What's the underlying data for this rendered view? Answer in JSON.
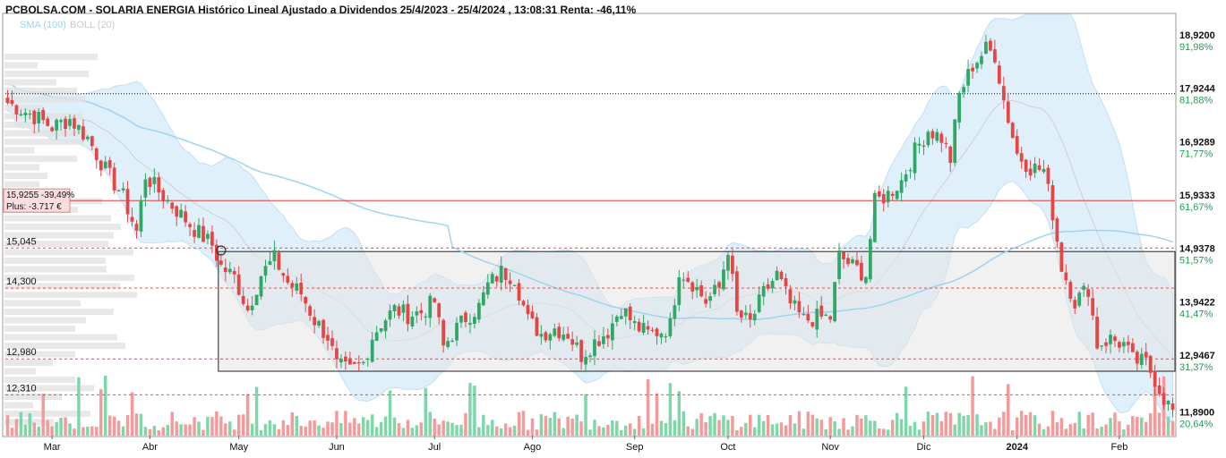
{
  "chart_data": {
    "type": "candlestick",
    "title": "PCBOLSA.COM - SOLARIA ENERGIA Histórico Lineal Ajustado a Dividendos 25/4/2023 - 25/4/2024 , 13:08:31 Renta: -46,11%",
    "legend": [
      {
        "name": "SMA (100)",
        "color": "#9fd3f0"
      },
      {
        "name": "BOLL (20)",
        "color": "#c9c9c9"
      }
    ],
    "ylim": [
      11.55,
      19.4
    ],
    "y_ticks": [
      {
        "price": "18,9200",
        "pct": "91,98%",
        "value": 18.92
      },
      {
        "price": "17,9244",
        "pct": "81,88%",
        "value": 17.9244
      },
      {
        "price": "16,9289",
        "pct": "71,77%",
        "value": 16.9289
      },
      {
        "price": "15,9333",
        "pct": "61,67%",
        "value": 15.9333
      },
      {
        "price": "14,9378",
        "pct": "51,57%",
        "value": 14.9378
      },
      {
        "price": "13,9422",
        "pct": "41,47%",
        "value": 13.9422
      },
      {
        "price": "12,9467",
        "pct": "31,37%",
        "value": 12.9467
      },
      {
        "price": "11,8900",
        "pct": "20,64%",
        "value": 11.89
      }
    ],
    "x_ticks": [
      {
        "label": "Mar",
        "idx": 10
      },
      {
        "label": "Abr",
        "idx": 32
      },
      {
        "label": "May",
        "idx": 52
      },
      {
        "label": "Jun",
        "idx": 74
      },
      {
        "label": "Jul",
        "idx": 96
      },
      {
        "label": "Ago",
        "idx": 118
      },
      {
        "label": "Sep",
        "idx": 141
      },
      {
        "label": "Oct",
        "idx": 162
      },
      {
        "label": "Nov",
        "idx": 185
      },
      {
        "label": "Dic",
        "idx": 206
      },
      {
        "label": "2024",
        "idx": 227,
        "bold": true
      },
      {
        "label": "Feb",
        "idx": 250
      }
    ],
    "levels": [
      {
        "label": "15,045",
        "value": 15.045
      },
      {
        "label": "14,300",
        "value": 14.3
      },
      {
        "label": "12,980",
        "value": 12.98
      },
      {
        "label": "12,310",
        "value": 12.31
      }
    ],
    "max_line": 17.92,
    "cost_line": {
      "value": 15.93,
      "label1": "15,9255 -39,49%",
      "label2": "Plus: -3.717 €"
    },
    "range_box": {
      "y_top": 14.98,
      "y_bottom": 12.75,
      "idx_start": 48
    },
    "marker": {
      "idx": 48,
      "value": 15.0
    },
    "price_anchors": [
      [
        0,
        17.75
      ],
      [
        5,
        17.55
      ],
      [
        10,
        17.3
      ],
      [
        14,
        17.45
      ],
      [
        18,
        17.1
      ],
      [
        22,
        16.5
      ],
      [
        26,
        16.0
      ],
      [
        29,
        15.35
      ],
      [
        31,
        16.4
      ],
      [
        34,
        16.1
      ],
      [
        38,
        15.75
      ],
      [
        42,
        15.4
      ],
      [
        46,
        15.1
      ],
      [
        48,
        14.7
      ],
      [
        51,
        14.5
      ],
      [
        54,
        13.9
      ],
      [
        57,
        14.55
      ],
      [
        60,
        14.85
      ],
      [
        63,
        14.4
      ],
      [
        66,
        14.2
      ],
      [
        69,
        13.7
      ],
      [
        72,
        13.4
      ],
      [
        74,
        12.85
      ],
      [
        77,
        12.75
      ],
      [
        80,
        12.9
      ],
      [
        82,
        13.4
      ],
      [
        84,
        13.65
      ],
      [
        87,
        13.9
      ],
      [
        90,
        13.8
      ],
      [
        93,
        13.85
      ],
      [
        96,
        14.05
      ],
      [
        98,
        13.2
      ],
      [
        100,
        13.45
      ],
      [
        103,
        13.75
      ],
      [
        106,
        13.95
      ],
      [
        108,
        14.35
      ],
      [
        111,
        14.6
      ],
      [
        114,
        14.5
      ],
      [
        117,
        13.7
      ],
      [
        120,
        13.45
      ],
      [
        123,
        13.55
      ],
      [
        126,
        13.45
      ],
      [
        129,
        13.05
      ],
      [
        132,
        13.3
      ],
      [
        135,
        13.5
      ],
      [
        138,
        13.95
      ],
      [
        141,
        13.6
      ],
      [
        144,
        13.45
      ],
      [
        147,
        13.5
      ],
      [
        149,
        13.6
      ],
      [
        151,
        14.65
      ],
      [
        154,
        14.4
      ],
      [
        157,
        14.05
      ],
      [
        160,
        14.3
      ],
      [
        162,
        15.05
      ],
      [
        164,
        13.8
      ],
      [
        167,
        13.65
      ],
      [
        170,
        14.2
      ],
      [
        173,
        14.55
      ],
      [
        176,
        14.0
      ],
      [
        179,
        13.7
      ],
      [
        182,
        13.75
      ],
      [
        185,
        13.75
      ],
      [
        187,
        14.9
      ],
      [
        190,
        14.7
      ],
      [
        193,
        14.55
      ],
      [
        195,
        15.9
      ],
      [
        198,
        16.05
      ],
      [
        201,
        16.3
      ],
      [
        204,
        16.85
      ],
      [
        207,
        17.25
      ],
      [
        210,
        17.1
      ],
      [
        212,
        16.7
      ],
      [
        214,
        17.9
      ],
      [
        217,
        18.45
      ],
      [
        220,
        18.75
      ],
      [
        222,
        18.65
      ],
      [
        224,
        17.8
      ],
      [
        227,
        16.8
      ],
      [
        230,
        16.55
      ],
      [
        233,
        16.5
      ],
      [
        235,
        15.7
      ],
      [
        237,
        14.7
      ],
      [
        240,
        14.05
      ],
      [
        243,
        14.3
      ],
      [
        245,
        13.25
      ],
      [
        248,
        13.35
      ],
      [
        251,
        13.25
      ],
      [
        253,
        12.95
      ],
      [
        256,
        12.9
      ],
      [
        258,
        12.6
      ],
      [
        260,
        12.25
      ],
      [
        262,
        12.0
      ]
    ],
    "count": 263
  }
}
